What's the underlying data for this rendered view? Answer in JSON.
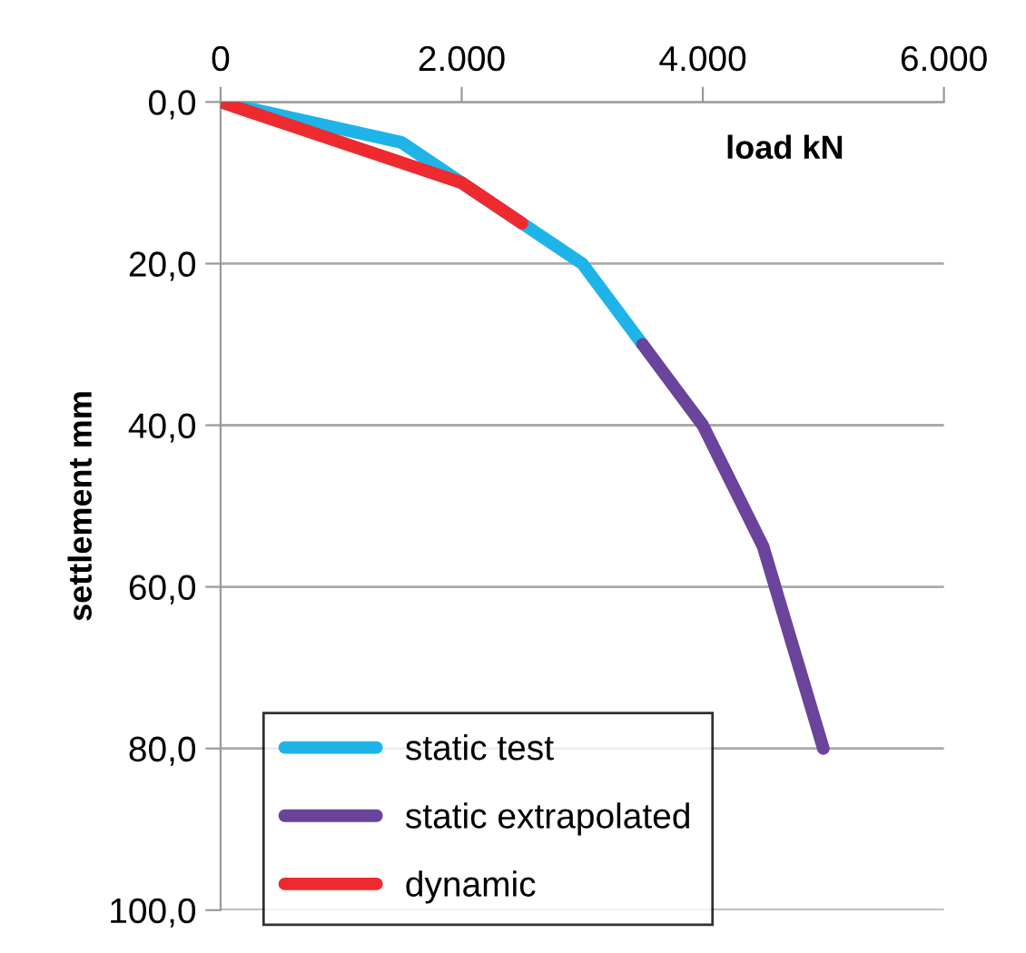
{
  "chart_data": {
    "type": "line",
    "xlabel": "load kN",
    "ylabel": "settlement mm",
    "xlim": [
      0,
      6000
    ],
    "ylim": [
      100,
      0
    ],
    "xticks": [
      {
        "value": 0,
        "label": "0"
      },
      {
        "value": 2000,
        "label": "2.000"
      },
      {
        "value": 4000,
        "label": "4.000"
      },
      {
        "value": 6000,
        "label": "6.000"
      }
    ],
    "yticks": [
      {
        "value": 0,
        "label": "0,0"
      },
      {
        "value": 20,
        "label": "20,0"
      },
      {
        "value": 40,
        "label": "40,0"
      },
      {
        "value": 60,
        "label": "60,0"
      },
      {
        "value": 80,
        "label": "80,0"
      },
      {
        "value": 100,
        "label": "100,0"
      }
    ],
    "grid": "y",
    "legend": "bottom left",
    "marker": "none",
    "line_style": "solid",
    "series": [
      {
        "name": "static test",
        "color": "#1fb4e8",
        "x": [
          0,
          1500,
          2000,
          2500,
          3000,
          3500
        ],
        "values": [
          0,
          5,
          10,
          15,
          20,
          30
        ]
      },
      {
        "name": "static extrapolated",
        "color": "#6a449b",
        "x": [
          3500,
          4000,
          4500,
          5000
        ],
        "values": [
          30,
          40,
          55,
          80
        ]
      },
      {
        "name": "dynamic",
        "color": "#ee2a2e",
        "x": [
          0,
          2000,
          2500
        ],
        "values": [
          0,
          10,
          15
        ]
      }
    ]
  }
}
